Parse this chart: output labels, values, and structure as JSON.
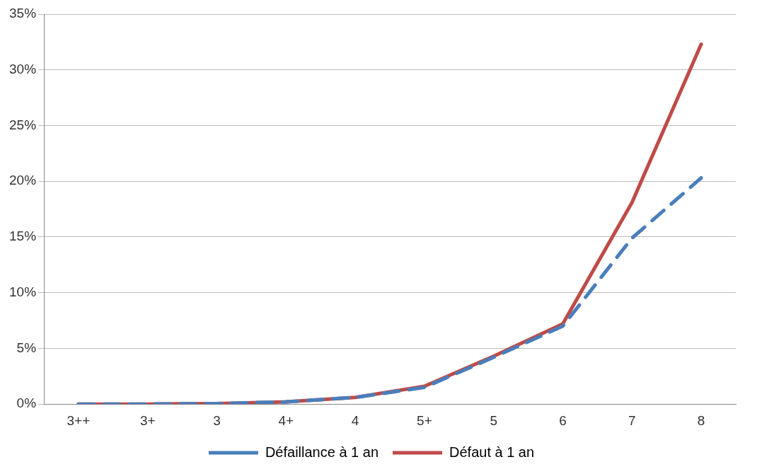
{
  "chart_data": {
    "type": "line",
    "categories": [
      "3++",
      "3+",
      "3",
      "4+",
      "4",
      "5+",
      "5",
      "6",
      "7",
      "8"
    ],
    "series": [
      {
        "name": "Défaillance à 1 an",
        "color": "#4a7ebb",
        "line_style": "dashed",
        "values": [
          0,
          0,
          0.05,
          0.2,
          0.6,
          1.5,
          4.2,
          7.0,
          14.9,
          20.3
        ]
      },
      {
        "name": "Défaut à 1 an",
        "color": "#be4b48",
        "line_style": "solid",
        "values": [
          0,
          0,
          0.05,
          0.2,
          0.6,
          1.6,
          4.3,
          7.2,
          18.1,
          32.3
        ]
      }
    ],
    "ylim": [
      0,
      35
    ],
    "yticks": [
      {
        "value": 0,
        "label": "0%"
      },
      {
        "value": 5,
        "label": "5%"
      },
      {
        "value": 10,
        "label": "10%"
      },
      {
        "value": 15,
        "label": "15%"
      },
      {
        "value": 20,
        "label": "20%"
      },
      {
        "value": 25,
        "label": "25%"
      },
      {
        "value": 30,
        "label": "30%"
      },
      {
        "value": 35,
        "label": "35%"
      }
    ],
    "grid": "y",
    "legend": "bottom",
    "marker": "none"
  }
}
